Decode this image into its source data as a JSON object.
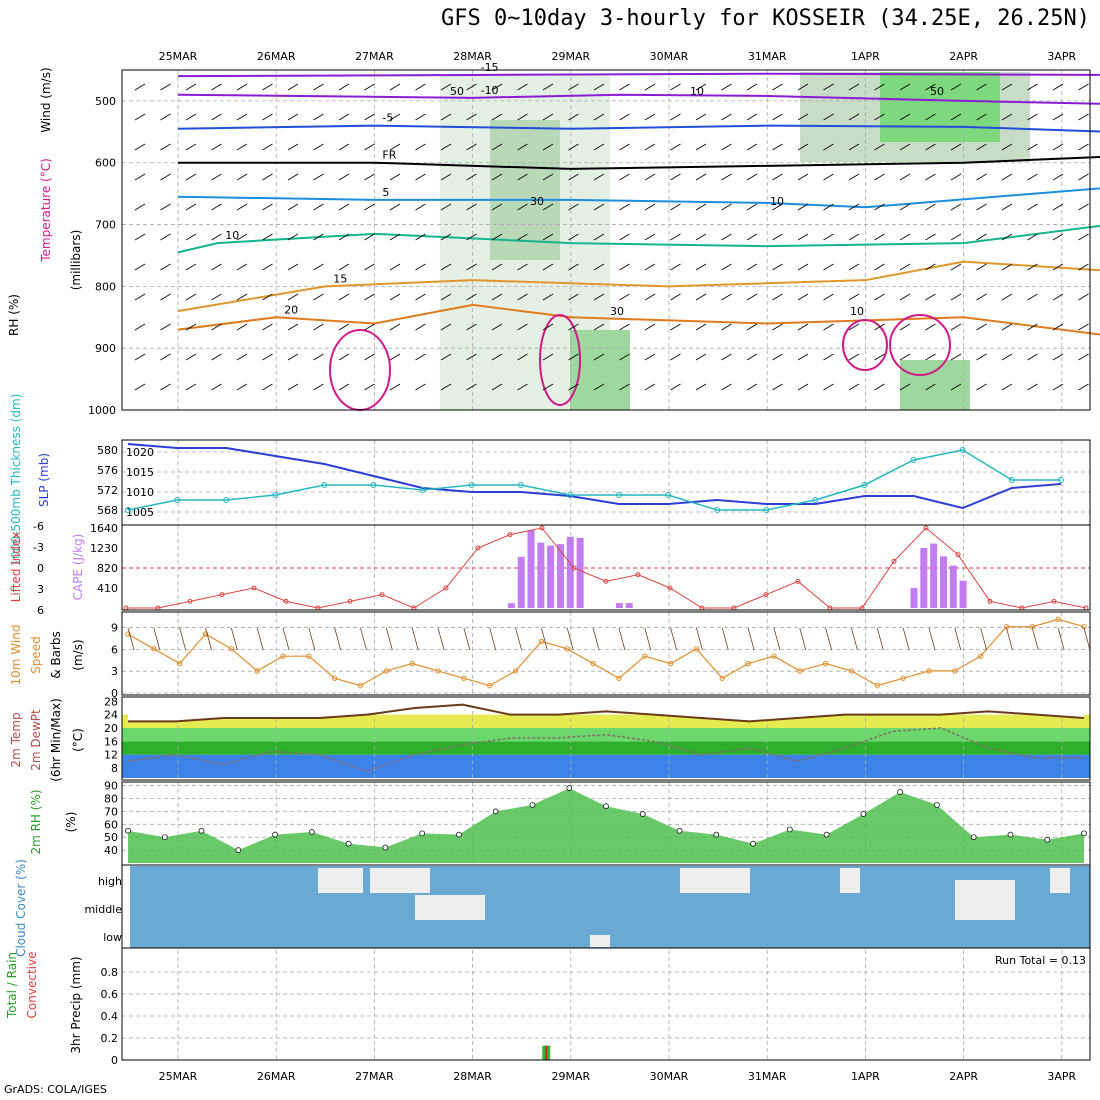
{
  "title": "GFS 0~10day 3-hourly for KOSSEIR (34.25E, 26.25N)",
  "credit": "GrADS: COLA/IGES",
  "colors": {
    "purple": "#8a1bd6",
    "blue": "#1f4fdb",
    "black": "#000000",
    "lightblue": "#1a8ee0",
    "teal": "#14b58c",
    "orange": "#e0962a",
    "darkorange": "#e07a1a",
    "magenta": "#d01a8a",
    "cyan": "#24b8c0",
    "slp": "#2c3ed6",
    "cape": "#c27ef0",
    "li": "#e04040",
    "wind": "#e09030",
    "cloud": "#6aa9d4",
    "cloudgap": "#eeeeee",
    "rh": "#4fc04f"
  },
  "chart_data": [
    {
      "type": "line",
      "panel": "upper-air",
      "days": [
        "25MAR",
        "26MAR",
        "27MAR",
        "28MAR",
        "29MAR",
        "30MAR",
        "31MAR",
        "1APR",
        "2APR",
        "3APR"
      ],
      "ylabel": "(millibars)",
      "side_labels": [
        "Wind (m/s)",
        "Temperature (°C)",
        "RH (%)"
      ],
      "pressure_ticks": [
        500,
        600,
        700,
        800,
        900,
        1000
      ],
      "ylim": [
        1000,
        450
      ],
      "temperature_contours": [
        {
          "label": "-15",
          "color": "purple",
          "points": [
            [
              0,
              460
            ],
            [
              3,
              458
            ],
            [
              6,
              456
            ],
            [
              9.5,
              458
            ]
          ]
        },
        {
          "label": "-10",
          "color": "purple",
          "points": [
            [
              0,
              490
            ],
            [
              3,
              495
            ],
            [
              4.5,
              490
            ],
            [
              6,
              492
            ],
            [
              8,
              500
            ],
            [
              9.5,
              505
            ]
          ]
        },
        {
          "label": "-5",
          "color": "blue",
          "points": [
            [
              0,
              545
            ],
            [
              2,
              540
            ],
            [
              4,
              545
            ],
            [
              6,
              540
            ],
            [
              8,
              542
            ],
            [
              9.5,
              550
            ]
          ]
        },
        {
          "label": "FR",
          "color": "black",
          "points": [
            [
              0,
              600
            ],
            [
              2,
              600
            ],
            [
              4,
              610
            ],
            [
              6,
              605
            ],
            [
              8,
              600
            ],
            [
              9.5,
              590
            ]
          ]
        },
        {
          "label": "5",
          "color": "lightblue",
          "points": [
            [
              0,
              655
            ],
            [
              2,
              660
            ],
            [
              4,
              660
            ],
            [
              6,
              665
            ],
            [
              7,
              672
            ],
            [
              9.5,
              640
            ]
          ]
        },
        {
          "label": "10",
          "color": "teal",
          "points": [
            [
              0,
              745
            ],
            [
              0.4,
              730
            ],
            [
              2,
              715
            ],
            [
              4,
              730
            ],
            [
              6,
              735
            ],
            [
              8,
              730
            ],
            [
              9.5,
              700
            ]
          ]
        },
        {
          "label": "15",
          "color": "orange",
          "points": [
            [
              0,
              840
            ],
            [
              1.5,
              800
            ],
            [
              3,
              790
            ],
            [
              5,
              800
            ],
            [
              7,
              790
            ],
            [
              8,
              760
            ],
            [
              9.5,
              775
            ]
          ]
        },
        {
          "label": "20",
          "color": "darkorange",
          "points": [
            [
              0,
              870
            ],
            [
              1,
              850
            ],
            [
              2,
              860
            ],
            [
              3,
              830
            ],
            [
              4,
              850
            ],
            [
              6,
              860
            ],
            [
              8,
              850
            ],
            [
              9.5,
              880
            ]
          ]
        }
      ],
      "rh_contour_labels": [
        "50",
        "30",
        "30",
        "10",
        "10",
        "10",
        "50"
      ]
    },
    {
      "type": "line",
      "panel": "thickness-slp",
      "ylabel_left": "1000-500mb Thickness (dm)",
      "ylabel_right": "SLP (mb)",
      "thickness_ticks": [
        568,
        572,
        576,
        580
      ],
      "slp_ticks": [
        1005,
        1010,
        1015,
        1020
      ],
      "x": [
        0,
        0.5,
        1,
        1.5,
        2,
        2.5,
        3,
        3.5,
        4,
        4.5,
        5,
        5.5,
        6,
        6.5,
        7,
        7.5,
        8,
        8.5,
        9,
        9.5
      ],
      "slp": [
        1022,
        1021,
        1021,
        1019,
        1017,
        1014,
        1011,
        1010,
        1010,
        1009,
        1007,
        1007,
        1008,
        1007,
        1007,
        1009,
        1009,
        1006,
        1011,
        1012
      ],
      "thickness": [
        568,
        570,
        570,
        571,
        573,
        573,
        572,
        573,
        573,
        571,
        571,
        571,
        568,
        568,
        570,
        573,
        578,
        580,
        574,
        574
      ]
    },
    {
      "type": "bar",
      "panel": "cape-li",
      "ylabel_cape": "CAPE (J/kg)",
      "ylabel_li": "Lifted Index",
      "cape_ticks": [
        410,
        820,
        1230,
        1640
      ],
      "li_ticks": [
        6,
        3,
        0,
        -3,
        -6
      ],
      "cape_bars": [
        [
          3.4,
          100
        ],
        [
          3.5,
          1050
        ],
        [
          3.6,
          1600
        ],
        [
          3.7,
          1340
        ],
        [
          3.8,
          1280
        ],
        [
          3.9,
          1310
        ],
        [
          4.0,
          1460
        ],
        [
          4.1,
          1440
        ],
        [
          4.5,
          100
        ],
        [
          4.6,
          100
        ],
        [
          7.5,
          410
        ],
        [
          7.6,
          1230
        ],
        [
          7.7,
          1320
        ],
        [
          7.8,
          1060
        ],
        [
          7.9,
          870
        ],
        [
          8.0,
          560
        ]
      ],
      "li": [
        6,
        6,
        5,
        4,
        3,
        5,
        6,
        5,
        4,
        6,
        3,
        -3,
        -5,
        -6,
        0,
        2,
        1,
        3,
        6,
        6,
        4,
        2,
        6,
        6,
        -1,
        -6,
        -2,
        5,
        6,
        5,
        6
      ]
    },
    {
      "type": "line",
      "panel": "wind10m",
      "ylabel": "10m Wind Speed & Barbs (m/s)",
      "yticks": [
        0,
        3,
        6,
        9
      ],
      "speed": [
        8,
        6,
        4,
        8,
        6,
        3,
        5,
        5,
        2,
        1,
        3,
        4,
        3,
        2,
        1,
        3,
        7,
        6,
        4,
        2,
        5,
        4,
        6,
        2,
        4,
        5,
        3,
        4,
        3,
        1,
        2,
        3,
        3,
        5,
        9,
        9,
        10,
        9
      ]
    },
    {
      "type": "area",
      "panel": "temp2m",
      "ylabel": "2m Temp / 2m DewPt (6hr Min/Max) (°C)",
      "yticks": [
        8,
        12,
        16,
        20,
        24,
        28
      ],
      "temp": [
        22,
        22,
        23,
        23,
        23,
        24,
        26,
        27,
        24,
        24,
        25,
        24,
        23,
        22,
        23,
        24,
        24,
        24,
        25,
        24,
        23
      ],
      "dewpt": [
        10,
        12,
        9,
        13,
        12,
        7,
        12,
        15,
        17,
        17,
        18,
        16,
        12,
        14,
        10,
        14,
        19,
        20,
        14,
        11,
        11
      ]
    },
    {
      "type": "area",
      "panel": "rh2m",
      "ylabel": "2m RH (%)",
      "yticks": [
        40,
        50,
        60,
        70,
        80,
        90
      ],
      "rh": [
        55,
        50,
        55,
        40,
        52,
        54,
        45,
        42,
        53,
        52,
        70,
        75,
        88,
        74,
        68,
        55,
        52,
        45,
        56,
        52,
        68,
        85,
        75,
        50,
        52,
        48,
        53
      ]
    },
    {
      "type": "heatmap",
      "panel": "cloud",
      "ylabel": "Cloud Cover (%)",
      "levels": [
        "high",
        "middle",
        "low"
      ]
    },
    {
      "type": "bar",
      "panel": "precip",
      "ylabel": "3hr Precip (mm)",
      "legend": [
        "Total / Rain",
        "Convective"
      ],
      "yticks": [
        0,
        0.2,
        0.4,
        0.6,
        0.8
      ],
      "ylim": [
        0,
        1
      ],
      "bars": [
        [
          3.75,
          0.13
        ]
      ],
      "run_total": "Run Total = 0.13"
    }
  ]
}
